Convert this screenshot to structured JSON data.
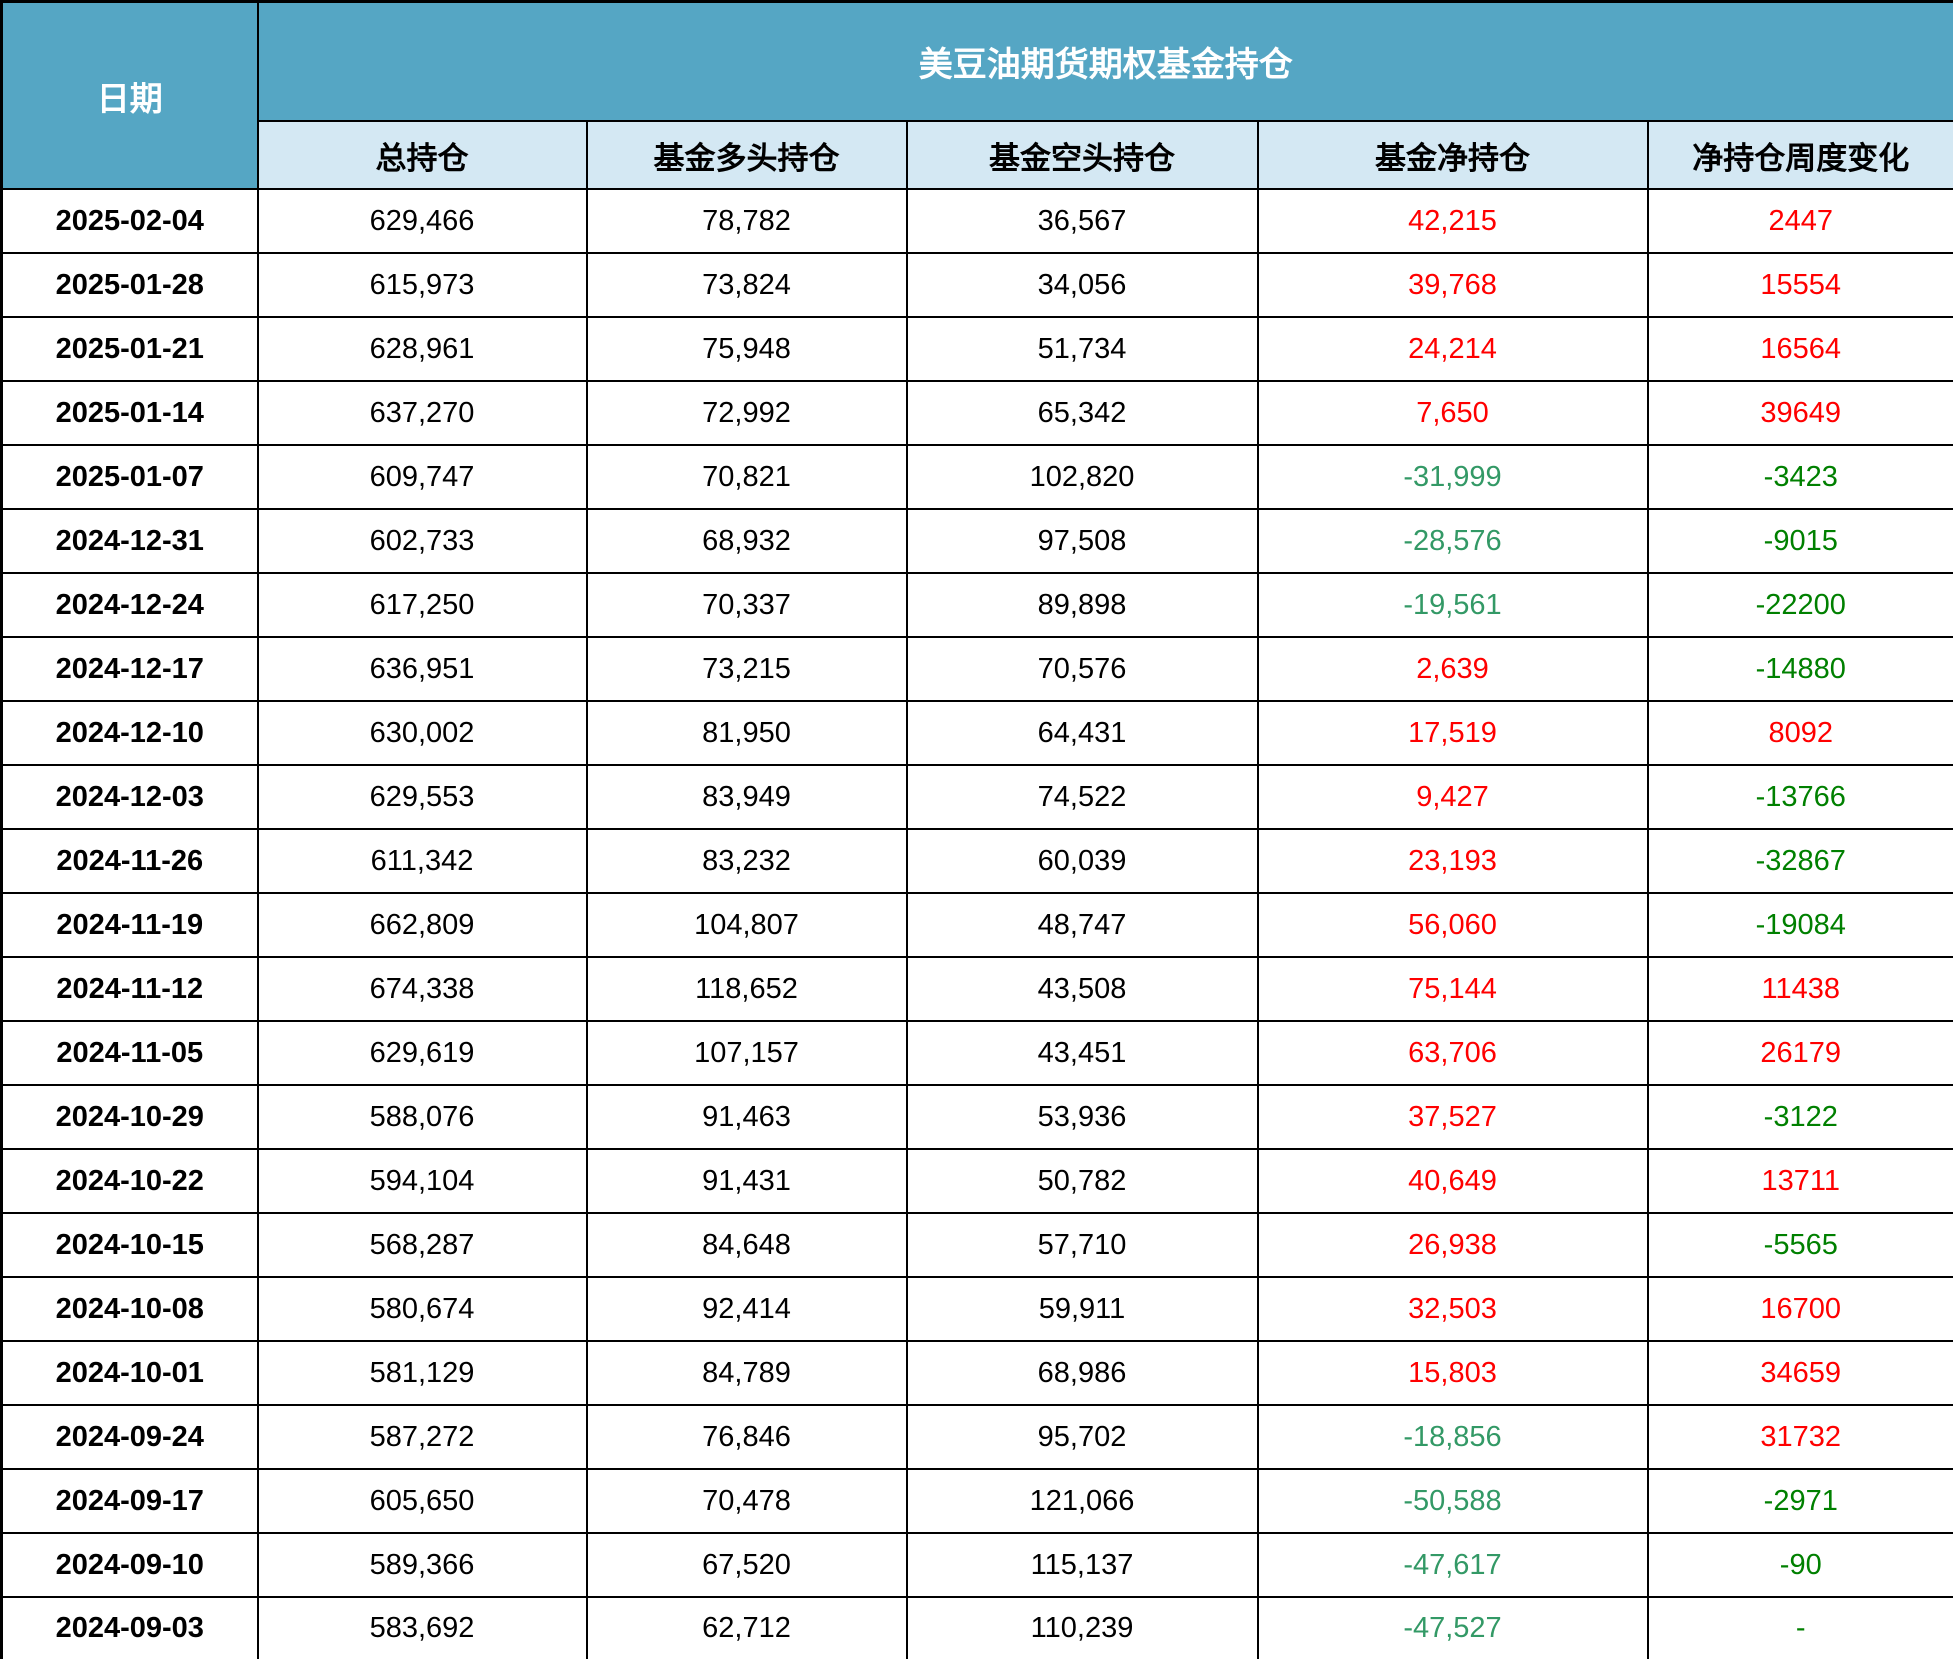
{
  "colors": {
    "header_bg": "#55a6c4",
    "subheader_bg": "#d4e8f3",
    "positive": "#ff0000",
    "negative_net": "#339966",
    "negative_change": "#008000",
    "header_text": "#ffffff",
    "body_text": "#000000"
  },
  "table": {
    "date_header": "日期",
    "group_header": "美豆油期货期权基金持仓",
    "columns": [
      "总持仓",
      "基金多头持仓",
      "基金空头持仓",
      "基金净持仓",
      "净持仓周度变化"
    ],
    "rows": [
      {
        "date": "2025-02-04",
        "total": "629,466",
        "long": "78,782",
        "short": "36,567",
        "net": "42,215",
        "net_color": "positive",
        "change": "2447",
        "change_color": "positive"
      },
      {
        "date": "2025-01-28",
        "total": "615,973",
        "long": "73,824",
        "short": "34,056",
        "net": "39,768",
        "net_color": "positive",
        "change": "15554",
        "change_color": "positive"
      },
      {
        "date": "2025-01-21",
        "total": "628,961",
        "long": "75,948",
        "short": "51,734",
        "net": "24,214",
        "net_color": "positive",
        "change": "16564",
        "change_color": "positive"
      },
      {
        "date": "2025-01-14",
        "total": "637,270",
        "long": "72,992",
        "short": "65,342",
        "net": "7,650",
        "net_color": "positive",
        "change": "39649",
        "change_color": "positive"
      },
      {
        "date": "2025-01-07",
        "total": "609,747",
        "long": "70,821",
        "short": "102,820",
        "net": "-31,999",
        "net_color": "negative_net",
        "change": "-3423",
        "change_color": "negative_change"
      },
      {
        "date": "2024-12-31",
        "total": "602,733",
        "long": "68,932",
        "short": "97,508",
        "net": "-28,576",
        "net_color": "negative_net",
        "change": "-9015",
        "change_color": "negative_change"
      },
      {
        "date": "2024-12-24",
        "total": "617,250",
        "long": "70,337",
        "short": "89,898",
        "net": "-19,561",
        "net_color": "negative_net",
        "change": "-22200",
        "change_color": "negative_change"
      },
      {
        "date": "2024-12-17",
        "total": "636,951",
        "long": "73,215",
        "short": "70,576",
        "net": "2,639",
        "net_color": "positive",
        "change": "-14880",
        "change_color": "negative_change"
      },
      {
        "date": "2024-12-10",
        "total": "630,002",
        "long": "81,950",
        "short": "64,431",
        "net": "17,519",
        "net_color": "positive",
        "change": "8092",
        "change_color": "positive"
      },
      {
        "date": "2024-12-03",
        "total": "629,553",
        "long": "83,949",
        "short": "74,522",
        "net": "9,427",
        "net_color": "positive",
        "change": "-13766",
        "change_color": "negative_change"
      },
      {
        "date": "2024-11-26",
        "total": "611,342",
        "long": "83,232",
        "short": "60,039",
        "net": "23,193",
        "net_color": "positive",
        "change": "-32867",
        "change_color": "negative_change"
      },
      {
        "date": "2024-11-19",
        "total": "662,809",
        "long": "104,807",
        "short": "48,747",
        "net": "56,060",
        "net_color": "positive",
        "change": "-19084",
        "change_color": "negative_change"
      },
      {
        "date": "2024-11-12",
        "total": "674,338",
        "long": "118,652",
        "short": "43,508",
        "net": "75,144",
        "net_color": "positive",
        "change": "11438",
        "change_color": "positive"
      },
      {
        "date": "2024-11-05",
        "total": "629,619",
        "long": "107,157",
        "short": "43,451",
        "net": "63,706",
        "net_color": "positive",
        "change": "26179",
        "change_color": "positive"
      },
      {
        "date": "2024-10-29",
        "total": "588,076",
        "long": "91,463",
        "short": "53,936",
        "net": "37,527",
        "net_color": "positive",
        "change": "-3122",
        "change_color": "negative_change"
      },
      {
        "date": "2024-10-22",
        "total": "594,104",
        "long": "91,431",
        "short": "50,782",
        "net": "40,649",
        "net_color": "positive",
        "change": "13711",
        "change_color": "positive"
      },
      {
        "date": "2024-10-15",
        "total": "568,287",
        "long": "84,648",
        "short": "57,710",
        "net": "26,938",
        "net_color": "positive",
        "change": "-5565",
        "change_color": "negative_change"
      },
      {
        "date": "2024-10-08",
        "total": "580,674",
        "long": "92,414",
        "short": "59,911",
        "net": "32,503",
        "net_color": "positive",
        "change": "16700",
        "change_color": "positive"
      },
      {
        "date": "2024-10-01",
        "total": "581,129",
        "long": "84,789",
        "short": "68,986",
        "net": "15,803",
        "net_color": "positive",
        "change": "34659",
        "change_color": "positive"
      },
      {
        "date": "2024-09-24",
        "total": "587,272",
        "long": "76,846",
        "short": "95,702",
        "net": "-18,856",
        "net_color": "negative_net",
        "change": "31732",
        "change_color": "positive"
      },
      {
        "date": "2024-09-17",
        "total": "605,650",
        "long": "70,478",
        "short": "121,066",
        "net": "-50,588",
        "net_color": "negative_net",
        "change": "-2971",
        "change_color": "negative_change"
      },
      {
        "date": "2024-09-10",
        "total": "589,366",
        "long": "67,520",
        "short": "115,137",
        "net": "-47,617",
        "net_color": "negative_net",
        "change": "-90",
        "change_color": "negative_change"
      },
      {
        "date": "2024-09-03",
        "total": "583,692",
        "long": "62,712",
        "short": "110,239",
        "net": "-47,527",
        "net_color": "negative_net",
        "change": "-",
        "change_color": "negative_change"
      }
    ]
  }
}
